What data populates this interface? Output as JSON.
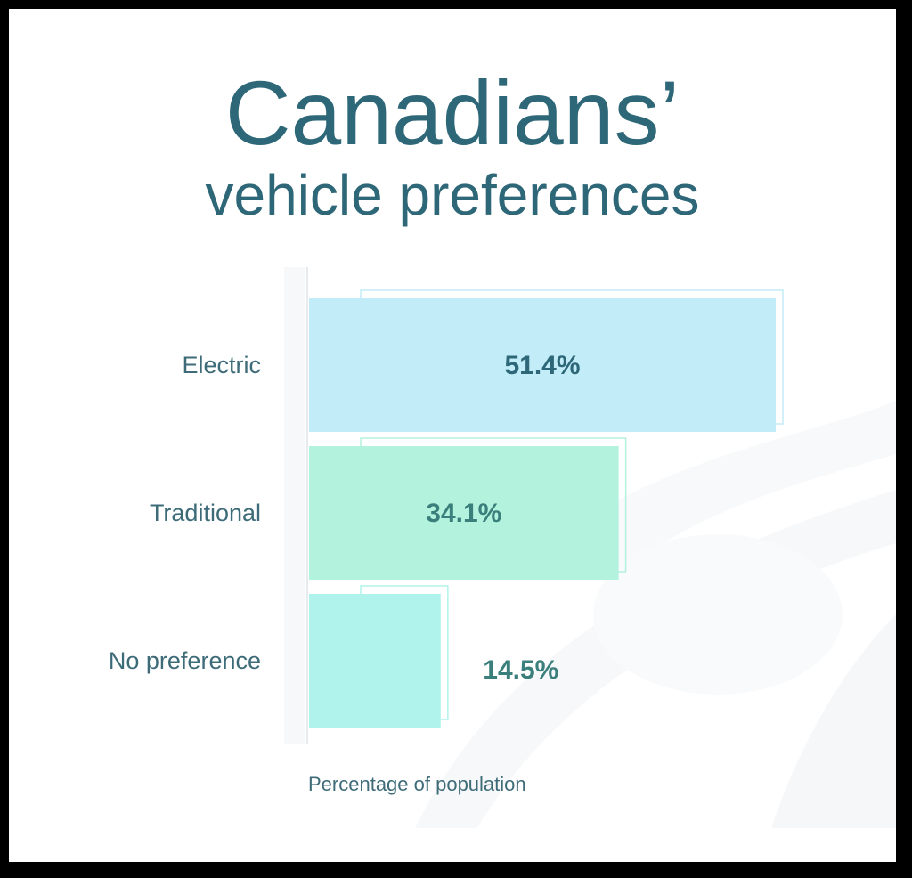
{
  "title": "Canadians’",
  "subtitle": "vehicle preferences",
  "colors": {
    "background": "#ffffff",
    "title": "#2e6878",
    "bar_electric": "#c2ecf7",
    "bar_traditional": "#b3f2dc",
    "bar_nopref": "#b0f3ec",
    "value_text": "#2e6878",
    "category_text": "#3d6b78"
  },
  "chart_data": {
    "type": "bar",
    "orientation": "horizontal",
    "title": "Canadians’ vehicle preferences",
    "xlabel": "Percentage of population",
    "ylabel": "",
    "categories": [
      "Electric",
      "Traditional",
      "No preference"
    ],
    "values": [
      51.4,
      34.1,
      14.5
    ],
    "value_labels": [
      "51.4%",
      "34.1%",
      "14.5%"
    ],
    "xlim": [
      0,
      51.4
    ],
    "grid": false,
    "legend": "none"
  }
}
